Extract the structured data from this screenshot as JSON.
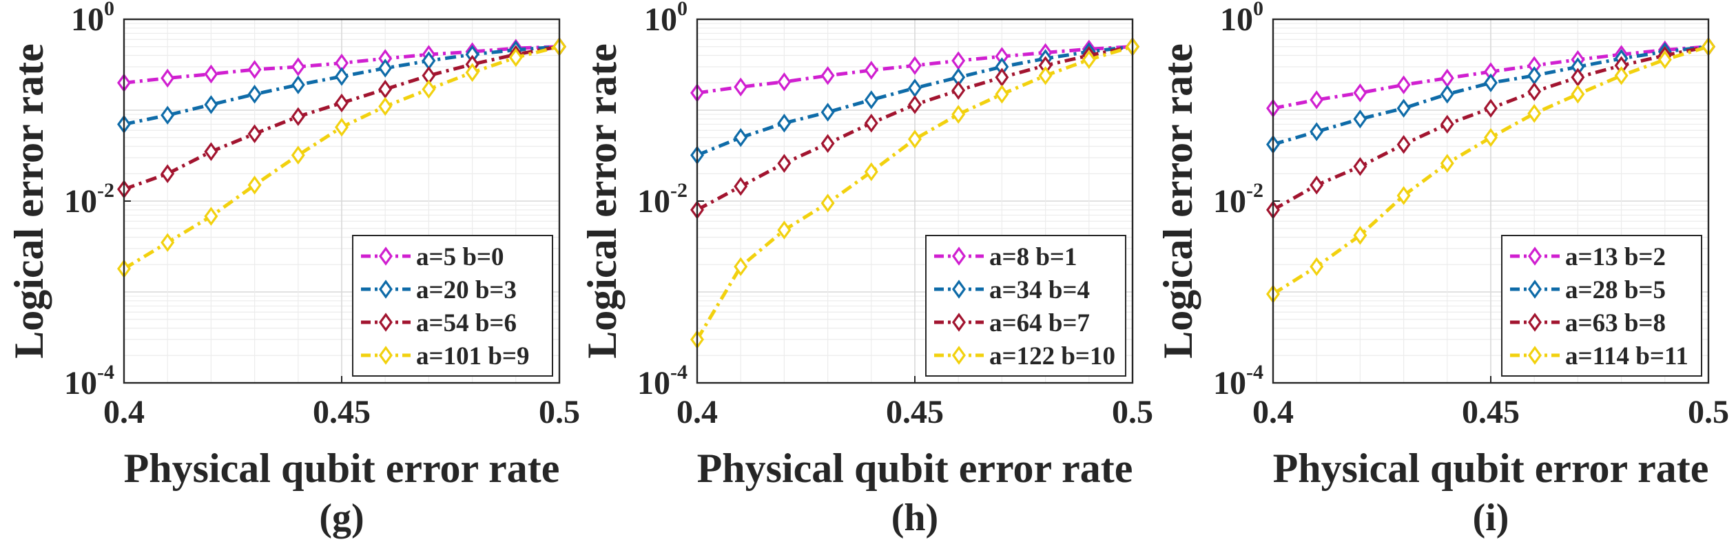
{
  "chart_data": [
    {
      "type": "line",
      "panel_label": "(g)",
      "xlabel": "Physical qubit error rate",
      "ylabel": "Logical error rate",
      "xscale": "linear",
      "yscale": "log",
      "xlim": [
        0.4,
        0.5
      ],
      "ylim": [
        0.0001,
        1
      ],
      "xticks": [
        "0.4",
        "0.45",
        "0.5"
      ],
      "yticks": [
        {
          "base": "10",
          "exp": "-4",
          "value": 0.0001
        },
        {
          "base": "10",
          "exp": "-2",
          "value": 0.01
        },
        {
          "base": "10",
          "exp": "0",
          "value": 1
        }
      ],
      "grid": true,
      "legend_position": "bottom-right",
      "x": [
        0.4,
        0.41,
        0.42,
        0.43,
        0.44,
        0.45,
        0.46,
        0.47,
        0.48,
        0.49,
        0.5
      ],
      "series": [
        {
          "name": "a=5 b=0",
          "color": "#D01FD0",
          "values": [
            0.2,
            0.225,
            0.25,
            0.28,
            0.3,
            0.33,
            0.37,
            0.41,
            0.44,
            0.48,
            0.5
          ]
        },
        {
          "name": "a=20 b=3",
          "color": "#0E6BA8",
          "values": [
            0.07,
            0.088,
            0.115,
            0.15,
            0.19,
            0.235,
            0.29,
            0.35,
            0.41,
            0.46,
            0.5
          ]
        },
        {
          "name": "a=54 b=6",
          "color": "#A2142F",
          "values": [
            0.0135,
            0.02,
            0.035,
            0.055,
            0.085,
            0.12,
            0.17,
            0.24,
            0.32,
            0.41,
            0.5
          ]
        },
        {
          "name": "a=101 b=9",
          "color": "#F2D10E",
          "values": [
            0.0018,
            0.0035,
            0.0068,
            0.015,
            0.032,
            0.065,
            0.11,
            0.17,
            0.26,
            0.38,
            0.5
          ]
        }
      ]
    },
    {
      "type": "line",
      "panel_label": "(h)",
      "xlabel": "Physical qubit error rate",
      "ylabel": "Logical error rate",
      "xscale": "linear",
      "yscale": "log",
      "xlim": [
        0.4,
        0.5
      ],
      "ylim": [
        0.0001,
        1
      ],
      "xticks": [
        "0.4",
        "0.45",
        "0.5"
      ],
      "yticks": [
        {
          "base": "10",
          "exp": "-4",
          "value": 0.0001
        },
        {
          "base": "10",
          "exp": "-2",
          "value": 0.01
        },
        {
          "base": "10",
          "exp": "0",
          "value": 1
        }
      ],
      "grid": true,
      "legend_position": "bottom-right",
      "x": [
        0.4,
        0.41,
        0.42,
        0.43,
        0.44,
        0.45,
        0.46,
        0.47,
        0.48,
        0.49,
        0.5
      ],
      "series": [
        {
          "name": "a=8 b=1",
          "color": "#D01FD0",
          "values": [
            0.155,
            0.18,
            0.205,
            0.24,
            0.275,
            0.31,
            0.35,
            0.39,
            0.43,
            0.47,
            0.5
          ]
        },
        {
          "name": "a=34 b=4",
          "color": "#0E6BA8",
          "values": [
            0.032,
            0.05,
            0.072,
            0.095,
            0.13,
            0.175,
            0.23,
            0.3,
            0.37,
            0.44,
            0.5
          ]
        },
        {
          "name": "a=64 b=7",
          "color": "#A2142F",
          "values": [
            0.008,
            0.0145,
            0.026,
            0.043,
            0.072,
            0.115,
            0.165,
            0.23,
            0.31,
            0.4,
            0.5
          ]
        },
        {
          "name": "a=122 b=10",
          "color": "#F2D10E",
          "values": [
            0.0003,
            0.0019,
            0.0048,
            0.0095,
            0.021,
            0.048,
            0.09,
            0.15,
            0.24,
            0.36,
            0.5
          ]
        }
      ]
    },
    {
      "type": "line",
      "panel_label": "(i)",
      "xlabel": "Physical qubit error rate",
      "ylabel": "Logical error rate",
      "xscale": "linear",
      "yscale": "log",
      "xlim": [
        0.4,
        0.5
      ],
      "ylim": [
        0.0001,
        1
      ],
      "xticks": [
        "0.4",
        "0.45",
        "0.5"
      ],
      "yticks": [
        {
          "base": "10",
          "exp": "-4",
          "value": 0.0001
        },
        {
          "base": "10",
          "exp": "-2",
          "value": 0.01
        },
        {
          "base": "10",
          "exp": "0",
          "value": 1
        }
      ],
      "grid": true,
      "legend_position": "bottom-right",
      "x": [
        0.4,
        0.41,
        0.42,
        0.43,
        0.44,
        0.45,
        0.46,
        0.47,
        0.48,
        0.49,
        0.5
      ],
      "series": [
        {
          "name": "a=13 b=2",
          "color": "#D01FD0",
          "values": [
            0.105,
            0.13,
            0.155,
            0.19,
            0.225,
            0.265,
            0.31,
            0.36,
            0.41,
            0.46,
            0.5
          ]
        },
        {
          "name": "a=28 b=5",
          "color": "#0E6BA8",
          "values": [
            0.042,
            0.058,
            0.08,
            0.105,
            0.15,
            0.2,
            0.24,
            0.3,
            0.37,
            0.44,
            0.5
          ]
        },
        {
          "name": "a=63 b=8",
          "color": "#A2142F",
          "values": [
            0.008,
            0.015,
            0.024,
            0.042,
            0.07,
            0.105,
            0.16,
            0.23,
            0.31,
            0.4,
            0.5
          ]
        },
        {
          "name": "a=114 b=11",
          "color": "#F2D10E",
          "values": [
            0.00095,
            0.0019,
            0.0042,
            0.0115,
            0.026,
            0.05,
            0.092,
            0.15,
            0.24,
            0.36,
            0.5
          ]
        }
      ]
    }
  ]
}
